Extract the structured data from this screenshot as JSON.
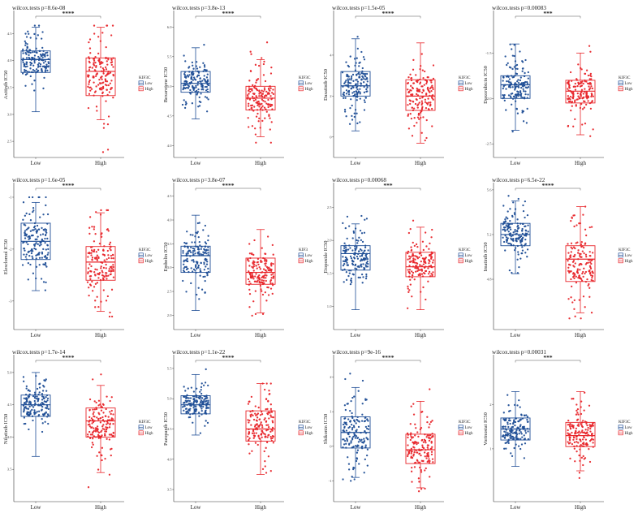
{
  "colors": {
    "low": "#1f4e96",
    "high": "#e8262b"
  },
  "panels": [
    {
      "drug": "Axitinib IC50",
      "title": "wilcox.tests p=8.6e-08",
      "sig": "****",
      "legend": "KIF3C",
      "cats": [
        "Low",
        "High"
      ],
      "ticks": [
        "4.5",
        "4.0",
        "3.5",
        "3.0",
        "2.5"
      ],
      "tvals": [
        4.5,
        4.0,
        3.5,
        3.0,
        2.5
      ],
      "yr": [
        2.2,
        4.9
      ],
      "low": {
        "min": 3.05,
        "q1": 3.78,
        "med": 4.02,
        "q3": 4.18,
        "max": 4.62,
        "lo": 3.0,
        "hi": 4.65
      },
      "high": {
        "min": 2.9,
        "q1": 3.35,
        "med": 3.8,
        "q3": 4.05,
        "max": 4.62,
        "lo": 2.3,
        "hi": 4.65
      }
    },
    {
      "drug": "Bexarotene IC50",
      "title": "wilcox.tests p=3.8e-13",
      "sig": "****",
      "legend": "KIF3C",
      "cats": [
        "Low",
        "High"
      ],
      "ticks": [
        "6.0",
        "5.5",
        "5.0",
        "4.5",
        "4.0"
      ],
      "tvals": [
        6.0,
        5.5,
        5.0,
        4.5,
        4.0
      ],
      "yr": [
        3.8,
        6.25
      ],
      "low": {
        "min": 4.45,
        "q1": 4.9,
        "med": 5.05,
        "q3": 5.25,
        "max": 5.65,
        "lo": 4.4,
        "hi": 5.7
      },
      "high": {
        "min": 4.15,
        "q1": 4.6,
        "med": 4.8,
        "q3": 5.0,
        "max": 5.45,
        "lo": 4.05,
        "hi": 6.1
      }
    },
    {
      "drug": "Dasatinib IC50",
      "title": "wilcox.tests p=1.5e-05",
      "sig": "****",
      "legend": "KIF3C",
      "cats": [
        "Low",
        "High"
      ],
      "ticks": [
        "4",
        "2",
        "0"
      ],
      "tvals": [
        4,
        2,
        0
      ],
      "yr": [
        -1,
        6.1
      ],
      "low": {
        "min": 0.3,
        "q1": 2.0,
        "med": 2.5,
        "q3": 3.2,
        "max": 4.8,
        "lo": -0.2,
        "hi": 4.9
      },
      "high": {
        "min": -0.3,
        "q1": 1.3,
        "med": 2.0,
        "q3": 2.8,
        "max": 4.6,
        "lo": -0.5,
        "hi": 5.7
      }
    },
    {
      "drug": "Doxorubicin IC50",
      "title": "wilcox.tests p=0.00083",
      "sig": "***",
      "legend": "KIF3C",
      "cats": [
        "Low",
        "High"
      ],
      "ticks": [
        "-1.5",
        "-2.0",
        "-2.5"
      ],
      "tvals": [
        -1.5,
        -2.0,
        -2.5
      ],
      "yr": [
        -2.65,
        -1.05
      ],
      "low": {
        "min": -2.35,
        "q1": -2.0,
        "med": -1.85,
        "q3": -1.75,
        "max": -1.4,
        "lo": -2.5,
        "hi": -1.4
      },
      "high": {
        "min": -2.4,
        "q1": -2.05,
        "med": -1.92,
        "q3": -1.8,
        "max": -1.5,
        "lo": -2.55,
        "hi": -1.3
      }
    },
    {
      "drug": "Elesclomol IC50",
      "title": "wilcox.tests p=1.6e-05",
      "sig": "****",
      "legend": "KIF3C",
      "cats": [
        "Low",
        "High"
      ],
      "ticks": [
        "-1",
        "-2",
        "-3"
      ],
      "tvals": [
        -1,
        -2,
        -3
      ],
      "yr": [
        -3.55,
        -0.75
      ],
      "low": {
        "min": -2.8,
        "q1": -2.2,
        "med": -1.85,
        "q3": -1.5,
        "max": -1.1,
        "lo": -2.9,
        "hi": -1.0
      },
      "high": {
        "min": -3.2,
        "q1": -2.6,
        "med": -2.25,
        "q3": -1.95,
        "max": -1.3,
        "lo": -3.3,
        "hi": -1.25
      }
    },
    {
      "drug": "Embelin IC50",
      "title": "wilcox.tests p=3.8e-07",
      "sig": "****",
      "legend": "KIF3",
      "cats": [
        "Low",
        "High"
      ],
      "ticks": [
        "4.5",
        "4.0",
        "3.5",
        "3.0",
        "2.5",
        "2.0"
      ],
      "tvals": [
        4.5,
        4.0,
        3.5,
        3.0,
        2.5,
        2.0
      ],
      "yr": [
        1.7,
        4.75
      ],
      "low": {
        "min": 2.1,
        "q1": 2.9,
        "med": 3.25,
        "q3": 3.45,
        "max": 4.1,
        "lo": 2.1,
        "hi": 4.45
      },
      "high": {
        "min": 2.05,
        "q1": 2.65,
        "med": 2.9,
        "q3": 3.2,
        "max": 3.8,
        "lo": 1.9,
        "hi": 4.0
      }
    },
    {
      "drug": "Etoposide IC50",
      "title": "wilcox.tests p=0.00068",
      "sig": "***",
      "legend": "KIF3C",
      "cats": [
        "Low",
        "High"
      ],
      "ticks": [
        "2.5",
        "2.0",
        "1.5",
        "1.0"
      ],
      "tvals": [
        2.5,
        2.0,
        1.5,
        1.0
      ],
      "yr": [
        0.65,
        2.85
      ],
      "low": {
        "min": 0.95,
        "q1": 1.55,
        "med": 1.8,
        "q3": 1.92,
        "max": 2.25,
        "lo": 0.85,
        "hi": 2.5
      },
      "high": {
        "min": 0.95,
        "q1": 1.45,
        "med": 1.6,
        "q3": 1.82,
        "max": 2.2,
        "lo": 0.75,
        "hi": 2.3
      }
    },
    {
      "drug": "Imatinib IC50",
      "title": "wilcox.tests p=6.5e-22",
      "sig": "****",
      "legend": "KIF3C",
      "cats": [
        "Low",
        "High"
      ],
      "ticks": [
        "5.6",
        "5.2",
        "4.8"
      ],
      "tvals": [
        5.6,
        5.2,
        4.8
      ],
      "yr": [
        4.35,
        5.65
      ],
      "low": {
        "min": 4.85,
        "q1": 5.1,
        "med": 5.2,
        "q3": 5.3,
        "max": 5.5,
        "lo": 4.75,
        "hi": 5.55
      },
      "high": {
        "min": 4.5,
        "q1": 4.78,
        "med": 4.98,
        "q3": 5.1,
        "max": 5.45,
        "lo": 4.45,
        "hi": 5.45
      }
    },
    {
      "drug": "Nilotinib IC50",
      "title": "wilcox.tests p=1.7e-14",
      "sig": "****",
      "legend": "KIF3C",
      "cats": [
        "Low",
        "High"
      ],
      "ticks": [
        "5.0",
        "4.5",
        "4.0",
        "3.5"
      ],
      "tvals": [
        5.0,
        4.5,
        4.0,
        3.5
      ],
      "yr": [
        3.0,
        5.25
      ],
      "low": {
        "min": 3.7,
        "q1": 4.32,
        "med": 4.5,
        "q3": 4.65,
        "max": 5.0,
        "lo": 3.3,
        "hi": 5.05
      },
      "high": {
        "min": 3.45,
        "q1": 4.0,
        "med": 4.25,
        "q3": 4.45,
        "max": 4.8,
        "lo": 3.2,
        "hi": 5.05
      }
    },
    {
      "drug": "Pazopanib IC50",
      "title": "wilcox.tests p=1.1e-22",
      "sig": "****",
      "legend": "KIF3C",
      "cats": [
        "Low",
        "High"
      ],
      "ticks": [
        "5.5",
        "5.0",
        "4.5",
        "4.0",
        "3.5"
      ],
      "tvals": [
        5.5,
        5.0,
        4.5,
        4.0,
        3.5
      ],
      "yr": [
        3.3,
        5.7
      ],
      "low": {
        "min": 4.4,
        "q1": 4.75,
        "med": 4.9,
        "q3": 5.05,
        "max": 5.4,
        "lo": 4.35,
        "hi": 5.55
      },
      "high": {
        "min": 3.75,
        "q1": 4.3,
        "med": 4.5,
        "q3": 4.8,
        "max": 5.25,
        "lo": 3.65,
        "hi": 5.25
      }
    },
    {
      "drug": "Shikonin IC50",
      "title": "wilcox.tests p=9e-16",
      "sig": "****",
      "legend": "KIF3C",
      "cats": [
        "Low",
        "High"
      ],
      "ticks": [
        "2",
        "1",
        "0",
        "-1"
      ],
      "tvals": [
        2,
        1,
        0,
        -1
      ],
      "yr": [
        -1.6,
        2.6
      ],
      "low": {
        "min": -0.9,
        "q1": -0.05,
        "med": 0.4,
        "q3": 0.85,
        "max": 1.7,
        "lo": -1.0,
        "hi": 2.1
      },
      "high": {
        "min": -1.2,
        "q1": -0.5,
        "med": -0.1,
        "q3": 0.35,
        "max": 1.3,
        "lo": -1.3,
        "hi": 1.8
      }
    },
    {
      "drug": "Vorinostat IC50",
      "title": "wilcox.tests p=0.00031",
      "sig": "***",
      "legend": "KIF3C",
      "cats": [
        "Low",
        "High"
      ],
      "ticks": [
        "2",
        "1"
      ],
      "tvals": [
        2,
        1
      ],
      "yr": [
        -0.2,
        3.1
      ],
      "low": {
        "min": 0.6,
        "q1": 1.2,
        "med": 1.45,
        "q3": 1.7,
        "max": 2.3,
        "lo": 0.3,
        "hi": 2.85
      },
      "high": {
        "min": 0.5,
        "q1": 1.05,
        "med": 1.3,
        "q3": 1.6,
        "max": 2.3,
        "lo": 0.15,
        "hi": 2.4
      }
    }
  ],
  "chart_data": [
    {
      "type": "box",
      "title": "wilcox.tests p=8.6e-08",
      "ylabel": "Axitinib IC50",
      "categories": [
        "Low",
        "High"
      ],
      "legend_title": "KIF3C",
      "series": [
        {
          "name": "Low",
          "q1": 3.78,
          "median": 4.02,
          "q3": 4.18,
          "whisker_low": 3.05,
          "whisker_high": 4.62
        },
        {
          "name": "High",
          "q1": 3.35,
          "median": 3.8,
          "q3": 4.05,
          "whisker_low": 2.9,
          "whisker_high": 4.62
        }
      ],
      "significance": "****"
    },
    {
      "type": "box",
      "title": "wilcox.tests p=3.8e-13",
      "ylabel": "Bexarotene IC50",
      "categories": [
        "Low",
        "High"
      ],
      "legend_title": "KIF3C",
      "series": [
        {
          "name": "Low",
          "q1": 4.9,
          "median": 5.05,
          "q3": 5.25,
          "whisker_low": 4.45,
          "whisker_high": 5.65
        },
        {
          "name": "High",
          "q1": 4.6,
          "median": 4.8,
          "q3": 5.0,
          "whisker_low": 4.15,
          "whisker_high": 5.45
        }
      ],
      "significance": "****"
    },
    {
      "type": "box",
      "title": "wilcox.tests p=1.5e-05",
      "ylabel": "Dasatinib IC50",
      "categories": [
        "Low",
        "High"
      ],
      "legend_title": "KIF3C",
      "series": [
        {
          "name": "Low",
          "q1": 2.0,
          "median": 2.5,
          "q3": 3.2,
          "whisker_low": 0.3,
          "whisker_high": 4.8
        },
        {
          "name": "High",
          "q1": 1.3,
          "median": 2.0,
          "q3": 2.8,
          "whisker_low": -0.3,
          "whisker_high": 4.6
        }
      ],
      "significance": "****"
    },
    {
      "type": "box",
      "title": "wilcox.tests p=0.00083",
      "ylabel": "Doxorubicin IC50",
      "categories": [
        "Low",
        "High"
      ],
      "legend_title": "KIF3C",
      "series": [
        {
          "name": "Low",
          "q1": -2.0,
          "median": -1.85,
          "q3": -1.75,
          "whisker_low": -2.35,
          "whisker_high": -1.4
        },
        {
          "name": "High",
          "q1": -2.05,
          "median": -1.92,
          "q3": -1.8,
          "whisker_low": -2.4,
          "whisker_high": -1.5
        }
      ],
      "significance": "***"
    },
    {
      "type": "box",
      "title": "wilcox.tests p=1.6e-05",
      "ylabel": "Elesclomol IC50",
      "categories": [
        "Low",
        "High"
      ],
      "legend_title": "KIF3C",
      "series": [
        {
          "name": "Low",
          "q1": -2.2,
          "median": -1.85,
          "q3": -1.5,
          "whisker_low": -2.8,
          "whisker_high": -1.1
        },
        {
          "name": "High",
          "q1": -2.6,
          "median": -2.25,
          "q3": -1.95,
          "whisker_low": -3.2,
          "whisker_high": -1.3
        }
      ],
      "significance": "****"
    },
    {
      "type": "box",
      "title": "wilcox.tests p=3.8e-07",
      "ylabel": "Embelin IC50",
      "categories": [
        "Low",
        "High"
      ],
      "legend_title": "KIF3",
      "series": [
        {
          "name": "Low",
          "q1": 2.9,
          "median": 3.25,
          "q3": 3.45,
          "whisker_low": 2.1,
          "whisker_high": 4.1
        },
        {
          "name": "High",
          "q1": 2.65,
          "median": 2.9,
          "q3": 3.2,
          "whisker_low": 2.05,
          "whisker_high": 3.8
        }
      ],
      "significance": "****"
    },
    {
      "type": "box",
      "title": "wilcox.tests p=0.00068",
      "ylabel": "Etoposide IC50",
      "categories": [
        "Low",
        "High"
      ],
      "legend_title": "KIF3C",
      "series": [
        {
          "name": "Low",
          "q1": 1.55,
          "median": 1.8,
          "q3": 1.92,
          "whisker_low": 0.95,
          "whisker_high": 2.25
        },
        {
          "name": "High",
          "q1": 1.45,
          "median": 1.6,
          "q3": 1.82,
          "whisker_low": 0.95,
          "whisker_high": 2.2
        }
      ],
      "significance": "***"
    },
    {
      "type": "box",
      "title": "wilcox.tests p=6.5e-22",
      "ylabel": "Imatinib IC50",
      "categories": [
        "Low",
        "High"
      ],
      "legend_title": "KIF3C",
      "series": [
        {
          "name": "Low",
          "q1": 5.1,
          "median": 5.2,
          "q3": 5.3,
          "whisker_low": 4.85,
          "whisker_high": 5.5
        },
        {
          "name": "High",
          "q1": 4.78,
          "median": 4.98,
          "q3": 5.1,
          "whisker_low": 4.5,
          "whisker_high": 5.45
        }
      ],
      "significance": "****"
    },
    {
      "type": "box",
      "title": "wilcox.tests p=1.7e-14",
      "ylabel": "Nilotinib IC50",
      "categories": [
        "Low",
        "High"
      ],
      "legend_title": "KIF3C",
      "series": [
        {
          "name": "Low",
          "q1": 4.32,
          "median": 4.5,
          "q3": 4.65,
          "whisker_low": 3.7,
          "whisker_high": 5.0
        },
        {
          "name": "High",
          "q1": 4.0,
          "median": 4.25,
          "q3": 4.45,
          "whisker_low": 3.45,
          "whisker_high": 4.8
        }
      ],
      "significance": "****"
    },
    {
      "type": "box",
      "title": "wilcox.tests p=1.1e-22",
      "ylabel": "Pazopanib IC50",
      "categories": [
        "Low",
        "High"
      ],
      "legend_title": "KIF3C",
      "series": [
        {
          "name": "Low",
          "q1": 4.75,
          "median": 4.9,
          "q3": 5.05,
          "whisker_low": 4.4,
          "whisker_high": 5.4
        },
        {
          "name": "High",
          "q1": 4.3,
          "median": 4.5,
          "q3": 4.8,
          "whisker_low": 3.75,
          "whisker_high": 5.25
        }
      ],
      "significance": "****"
    },
    {
      "type": "box",
      "title": "wilcox.tests p=9e-16",
      "ylabel": "Shikonin IC50",
      "categories": [
        "Low",
        "High"
      ],
      "legend_title": "KIF3C",
      "series": [
        {
          "name": "Low",
          "q1": -0.05,
          "median": 0.4,
          "q3": 0.85,
          "whisker_low": -0.9,
          "whisker_high": 1.7
        },
        {
          "name": "High",
          "q1": -0.5,
          "median": -0.1,
          "q3": 0.35,
          "whisker_low": -1.2,
          "whisker_high": 1.3
        }
      ],
      "significance": "****"
    },
    {
      "type": "box",
      "title": "wilcox.tests p=0.00031",
      "ylabel": "Vorinostat IC50",
      "categories": [
        "Low",
        "High"
      ],
      "legend_title": "KIF3C",
      "series": [
        {
          "name": "Low",
          "q1": 1.2,
          "median": 1.45,
          "q3": 1.7,
          "whisker_low": 0.6,
          "whisker_high": 2.3
        },
        {
          "name": "High",
          "q1": 1.05,
          "median": 1.3,
          "q3": 1.6,
          "whisker_low": 0.5,
          "whisker_high": 2.3
        }
      ],
      "significance": "***"
    }
  ]
}
